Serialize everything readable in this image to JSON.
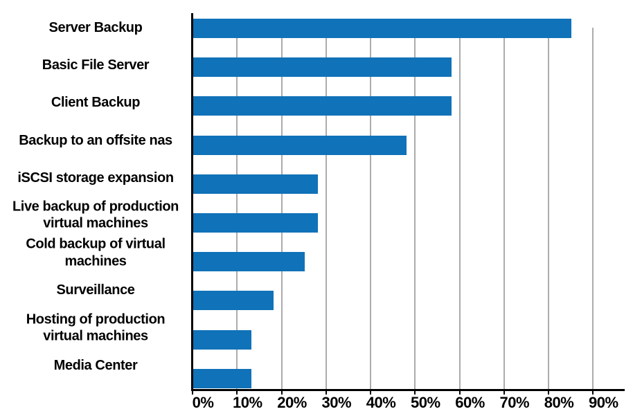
{
  "chart_data": {
    "type": "bar",
    "orientation": "horizontal",
    "title": "",
    "xlabel": "",
    "ylabel": "",
    "categories": [
      "Server Backup",
      "Basic File Server",
      "Client Backup",
      "Backup to an offsite nas",
      "iSCSI storage expansion",
      "Live backup of production\nvirtual machines",
      "Cold backup of virtual\nmachines",
      "Surveillance",
      "Hosting of production\nvirtual machines",
      "Media Center"
    ],
    "values": [
      85,
      58,
      58,
      48,
      28,
      28,
      25,
      18,
      13,
      13
    ],
    "unit": "%",
    "xlim": [
      0,
      90
    ],
    "x_tick_step": 10,
    "x_tick_labels": [
      "0%",
      "10%",
      "20%",
      "30%",
      "40%",
      "50%",
      "60%",
      "70%",
      "80%",
      "90%"
    ],
    "grid": "vertical-gridlines-on",
    "legend": "none",
    "colors": {
      "bar": "#1072B8",
      "gridline": "#ABABAB",
      "axis": "#000000",
      "text": "#000000",
      "background": "#FFFFFF"
    }
  }
}
